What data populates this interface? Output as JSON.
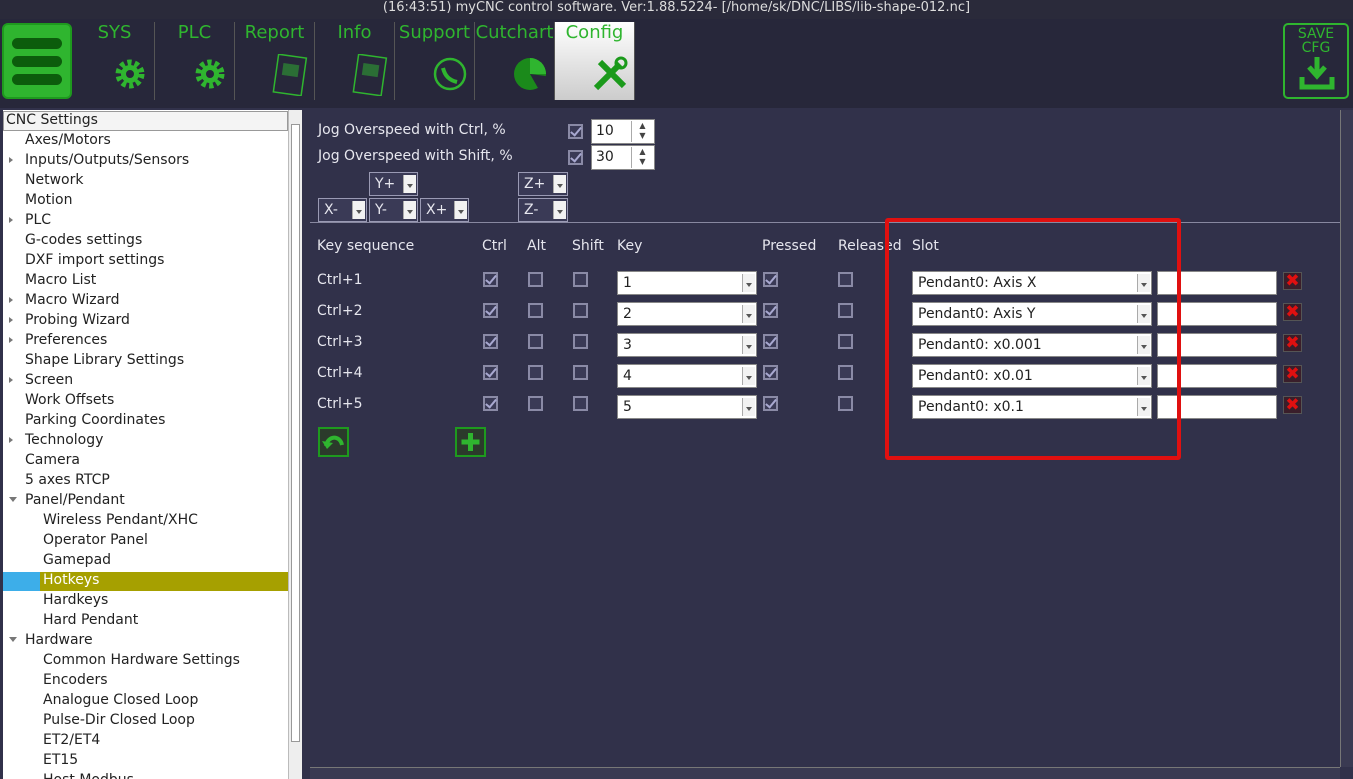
{
  "window_title": "(16:43:51) myCNC control software. Ver:1.88.5224- [/home/sk/DNC/LIBS/lib-shape-012.nc]",
  "tabs": [
    {
      "label": "SYS",
      "icon": "gear"
    },
    {
      "label": "PLC",
      "icon": "gear"
    },
    {
      "label": "Report",
      "icon": "doc"
    },
    {
      "label": "Info",
      "icon": "doc"
    },
    {
      "label": "Support",
      "icon": "phone"
    },
    {
      "label": "Cutchart",
      "icon": "pie"
    },
    {
      "label": "Config",
      "icon": "tools",
      "active": true
    }
  ],
  "save_button": [
    "SAVE",
    "CFG"
  ],
  "tree": {
    "header": "CNC Settings",
    "items": [
      {
        "label": "Axes/Motors",
        "level": 1
      },
      {
        "label": "Inputs/Outputs/Sensors",
        "level": 1,
        "arrow": "closed"
      },
      {
        "label": "Network",
        "level": 1
      },
      {
        "label": "Motion",
        "level": 1
      },
      {
        "label": "PLC",
        "level": 1,
        "arrow": "closed"
      },
      {
        "label": "G-codes settings",
        "level": 1
      },
      {
        "label": "DXF import settings",
        "level": 1
      },
      {
        "label": "Macro List",
        "level": 1
      },
      {
        "label": "Macro Wizard",
        "level": 1,
        "arrow": "closed"
      },
      {
        "label": "Probing Wizard",
        "level": 1,
        "arrow": "closed"
      },
      {
        "label": "Preferences",
        "level": 1,
        "arrow": "closed"
      },
      {
        "label": "Shape Library Settings",
        "level": 1
      },
      {
        "label": "Screen",
        "level": 1,
        "arrow": "closed"
      },
      {
        "label": "Work Offsets",
        "level": 1
      },
      {
        "label": "Parking Coordinates",
        "level": 1
      },
      {
        "label": "Technology",
        "level": 1,
        "arrow": "closed"
      },
      {
        "label": "Camera",
        "level": 1
      },
      {
        "label": "5 axes RTCP",
        "level": 1
      },
      {
        "label": "Panel/Pendant",
        "level": 1,
        "arrow": "open"
      },
      {
        "label": "Wireless Pendant/XHC",
        "level": 2
      },
      {
        "label": "Operator Panel",
        "level": 2
      },
      {
        "label": "Gamepad",
        "level": 2
      },
      {
        "label": "Hotkeys",
        "level": 2,
        "selected": true
      },
      {
        "label": "Hardkeys",
        "level": 2
      },
      {
        "label": "Hard Pendant",
        "level": 2
      },
      {
        "label": "Hardware",
        "level": 1,
        "arrow": "open"
      },
      {
        "label": "Common Hardware Settings",
        "level": 2
      },
      {
        "label": "Encoders",
        "level": 2
      },
      {
        "label": "Analogue Closed Loop",
        "level": 2
      },
      {
        "label": "Pulse-Dir Closed Loop",
        "level": 2
      },
      {
        "label": "ET2/ET4",
        "level": 2
      },
      {
        "label": "ET15",
        "level": 2
      },
      {
        "label": "Host Modbus",
        "level": 2
      }
    ]
  },
  "jog": [
    {
      "label": "Jog Overspeed with Ctrl, %",
      "checked": true,
      "value": "10"
    },
    {
      "label": "Jog Overspeed with Shift, %",
      "checked": true,
      "value": "30"
    }
  ],
  "jog_buttons": [
    {
      "label": "Y+",
      "col": 1,
      "row": 0
    },
    {
      "label": "X-",
      "col": 0,
      "row": 1
    },
    {
      "label": "Y-",
      "col": 1,
      "row": 1
    },
    {
      "label": "X+",
      "col": 2,
      "row": 1
    },
    {
      "label": "Z+",
      "col": 4,
      "row": 0
    },
    {
      "label": "Z-",
      "col": 4,
      "row": 1
    }
  ],
  "table": {
    "headers": [
      "Key sequence",
      "Ctrl",
      "Alt",
      "Shift",
      "Key",
      "Pressed",
      "Released",
      "Slot"
    ],
    "rows": [
      {
        "sequence": "Ctrl+1",
        "ctrl": true,
        "alt": false,
        "shift": false,
        "key": "1",
        "pressed": true,
        "released": false,
        "slot": "Pendant0: Axis X"
      },
      {
        "sequence": "Ctrl+2",
        "ctrl": true,
        "alt": false,
        "shift": false,
        "key": "2",
        "pressed": true,
        "released": false,
        "slot": "Pendant0: Axis Y"
      },
      {
        "sequence": "Ctrl+3",
        "ctrl": true,
        "alt": false,
        "shift": false,
        "key": "3",
        "pressed": true,
        "released": false,
        "slot": "Pendant0: x0.001"
      },
      {
        "sequence": "Ctrl+4",
        "ctrl": true,
        "alt": false,
        "shift": false,
        "key": "4",
        "pressed": true,
        "released": false,
        "slot": "Pendant0: x0.01"
      },
      {
        "sequence": "Ctrl+5",
        "ctrl": true,
        "alt": false,
        "shift": false,
        "key": "5",
        "pressed": true,
        "released": false,
        "slot": "Pendant0: x0.1"
      }
    ]
  }
}
